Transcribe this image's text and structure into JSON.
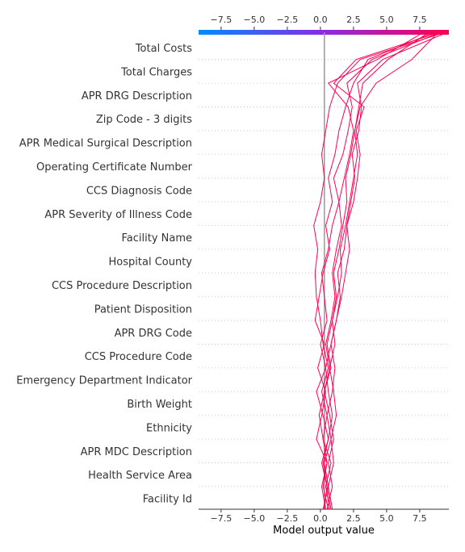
{
  "chart_data": {
    "type": "line",
    "subtype": "shap-decision-plot",
    "xlabel": "Model output value",
    "xlim": [
      -9.2,
      9.7
    ],
    "xticks": [
      -7.5,
      -5.0,
      -2.5,
      0.0,
      2.5,
      5.0,
      7.5
    ],
    "xtick_labels": [
      "−7.5",
      "−5.0",
      "−2.5",
      "0.0",
      "2.5",
      "5.0",
      "7.5"
    ],
    "base_value": 0.3,
    "features": [
      "Total Costs",
      "Total Charges",
      "APR DRG Description",
      "Zip Code - 3 digits",
      "APR Medical Surgical Description",
      "Operating Certificate Number",
      "CCS Diagnosis Code",
      "APR Severity of Illness Code",
      "Facility Name",
      "Hospital County",
      "CCS Procedure Description",
      "Patient Disposition",
      "APR DRG Code",
      "CCS Procedure Code",
      "Emergency Department Indicator",
      "Birth Weight",
      "Ethnicity",
      "APR MDC Description",
      "Health Service Area",
      "Facility Id"
    ],
    "colorbar": {
      "from": "#008bfb",
      "mid": "#8a2be2",
      "to": "#ff0052"
    },
    "line_color": "#ff0052",
    "series": [
      {
        "values": [
          0.6,
          0.2,
          0.5,
          -0.3,
          0.1,
          0.4,
          -0.2,
          0.3,
          -0.4,
          -0.1,
          0.2,
          0.7,
          0.4,
          0.9,
          0.6,
          1.1,
          1.4,
          1.9,
          2.5,
          3.6,
          8.6
        ]
      },
      {
        "values": [
          0.3,
          0.5,
          0.1,
          0.6,
          0.2,
          -0.3,
          0.4,
          0.0,
          0.5,
          0.3,
          0.1,
          0.6,
          0.9,
          1.4,
          1.0,
          1.7,
          2.1,
          2.4,
          2.0,
          3.9,
          9.1
        ]
      },
      {
        "values": [
          0.7,
          0.4,
          0.8,
          0.2,
          0.5,
          0.9,
          1.1,
          0.8,
          1.2,
          1.5,
          1.3,
          1.8,
          2.0,
          2.3,
          2.6,
          2.4,
          2.9,
          3.1,
          2.8,
          4.7,
          9.6
        ]
      },
      {
        "values": [
          0.5,
          0.9,
          0.6,
          1.0,
          0.7,
          0.3,
          0.8,
          0.5,
          0.9,
          1.2,
          1.0,
          1.4,
          1.7,
          2.0,
          1.9,
          2.3,
          2.6,
          2.9,
          3.2,
          5.1,
          8.2
        ]
      },
      {
        "values": [
          0.9,
          0.6,
          1.0,
          0.8,
          1.2,
          1.0,
          0.7,
          1.1,
          0.9,
          1.3,
          1.6,
          1.5,
          1.9,
          2.2,
          2.5,
          2.8,
          2.6,
          3.0,
          4.2,
          6.9,
          8.9
        ]
      },
      {
        "values": [
          0.2,
          0.6,
          0.3,
          0.8,
          0.5,
          0.1,
          0.6,
          0.2,
          0.0,
          -0.3,
          -0.4,
          -0.2,
          -0.5,
          0.0,
          0.3,
          0.1,
          0.4,
          0.7,
          1.3,
          3.0,
          9.4
        ]
      },
      {
        "values": [
          0.4,
          0.1,
          0.5,
          0.2,
          -0.1,
          0.3,
          0.7,
          0.4,
          0.8,
          1.1,
          0.9,
          1.2,
          1.6,
          1.4,
          1.8,
          2.2,
          2.5,
          2.1,
          0.6,
          4.3,
          7.8
        ]
      },
      {
        "values": [
          0.8,
          0.5,
          0.2,
          0.6,
          0.9,
          0.6,
          0.4,
          0.8,
          1.2,
          1.6,
          1.9,
          2.2,
          2.0,
          2.5,
          2.8,
          3.0,
          2.7,
          3.3,
          1.0,
          2.7,
          9.0
        ]
      }
    ]
  }
}
